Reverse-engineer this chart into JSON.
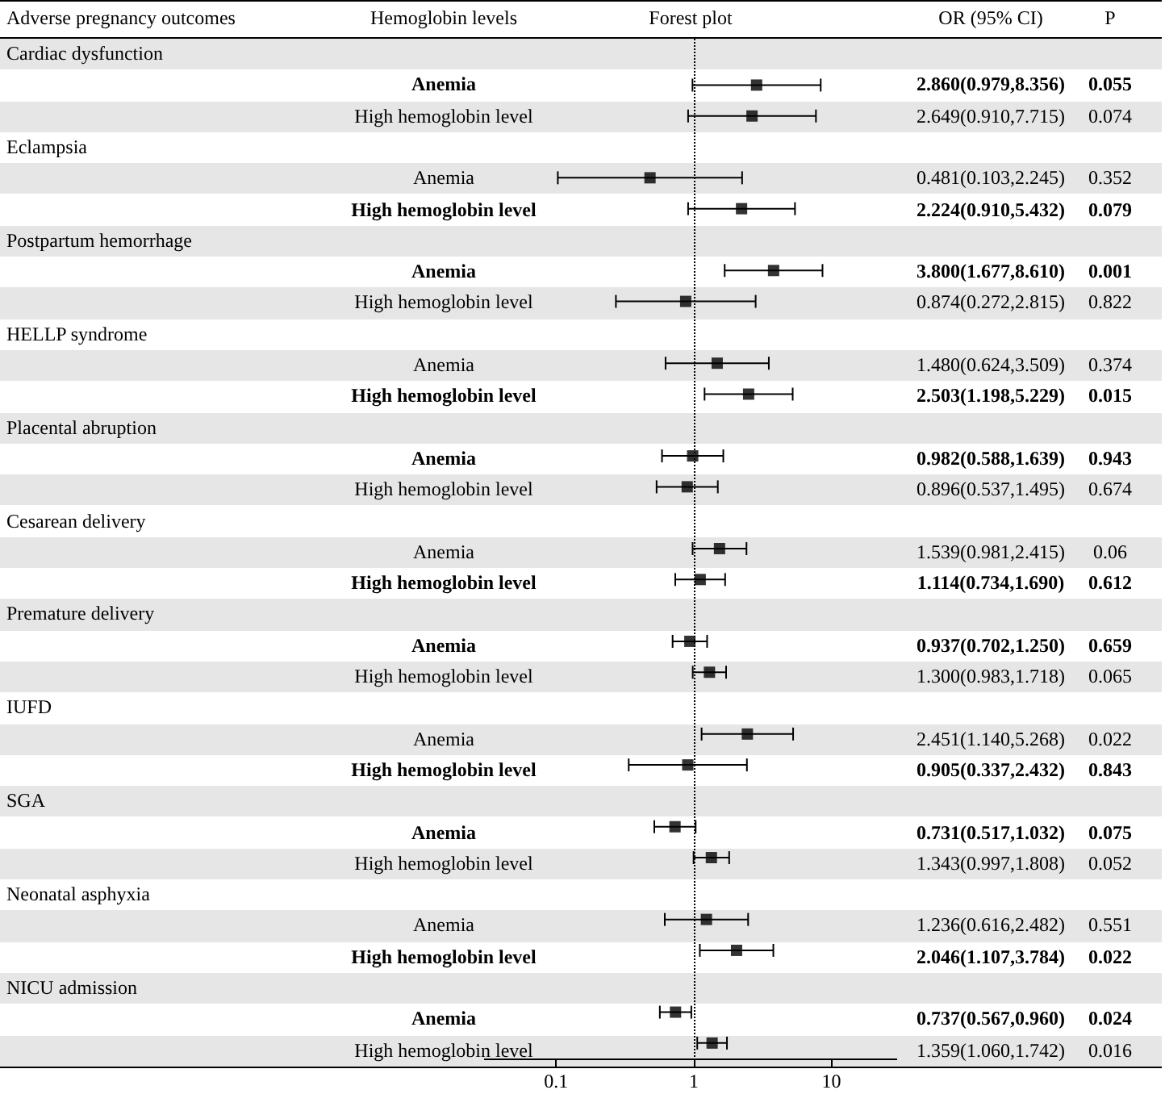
{
  "chart_data": {
    "type": "scatter",
    "orientation": "horizontal",
    "log": "x",
    "marker": "square",
    "color": "#000000",
    "annotations": [
      "Adverse pregnancy outcomes",
      "Hemoglobin levels",
      "Forest plot",
      "OR (95% CI)",
      "P",
      "Cardiac dysfunction",
      "Eclampsia",
      "Postpartum hemorrhage",
      "HELLP syndrome",
      "Placental abruption",
      "Cesarean delivery",
      "Premature delivery",
      "IUFD",
      "SGA",
      "Neonatal asphyxia",
      "NICU admission"
    ],
    "categories": [
      null,
      "Anemia",
      "High hemoglobin level",
      null,
      "Anemia",
      "High hemoglobin level",
      null,
      "Anemia",
      "High hemoglobin level",
      null,
      "Anemia",
      "High hemoglobin level",
      null,
      "Anemia",
      "High hemoglobin level",
      null,
      "Anemia",
      "High hemoglobin level",
      null,
      "Anemia",
      "High hemoglobin level",
      null,
      "Anemia",
      "High hemoglobin level",
      null,
      "Anemia",
      "High hemoglobin level",
      null,
      "Anemia",
      "High hemoglobin level",
      null,
      "Anemia",
      "High hemoglobin level"
    ],
    "values": [
      null,
      2.86,
      2.649,
      null,
      0.481,
      2.224,
      null,
      3.8,
      0.874,
      null,
      1.48,
      2.503,
      null,
      0.982,
      0.896,
      null,
      1.539,
      1.114,
      null,
      0.937,
      1.3,
      null,
      2.451,
      0.905,
      null,
      0.731,
      1.343,
      null,
      1.236,
      2.046,
      null,
      0.737,
      1.359
    ],
    "errors": [
      null,
      [
        0.979,
        8.356
      ],
      [
        0.91,
        7.715
      ],
      null,
      [
        0.103,
        2.245
      ],
      [
        0.91,
        5.432
      ],
      null,
      [
        1.677,
        8.61
      ],
      [
        0.272,
        2.815
      ],
      null,
      [
        0.624,
        3.509
      ],
      [
        1.198,
        5.229
      ],
      null,
      [
        0.588,
        1.639
      ],
      [
        0.537,
        1.495
      ],
      null,
      [
        0.981,
        2.415
      ],
      [
        0.734,
        1.69
      ],
      null,
      [
        0.702,
        1.25
      ],
      [
        0.983,
        1.718
      ],
      null,
      [
        1.14,
        5.268
      ],
      [
        0.337,
        2.432
      ],
      null,
      [
        0.517,
        1.032
      ],
      [
        0.997,
        1.808
      ],
      null,
      [
        0.616,
        2.482
      ],
      [
        1.107,
        3.784
      ],
      null,
      [
        0.567,
        0.96
      ],
      [
        1.06,
        1.742
      ]
    ],
    "value_labels": [
      null,
      "2.860(0.979,8.356)",
      "2.649(0.910,7.715)",
      null,
      "0.481(0.103,2.245)",
      "2.224(0.910,5.432)",
      null,
      "3.800(1.677,8.610)",
      "0.874(0.272,2.815)",
      null,
      "1.480(0.624,3.509)",
      "2.503(1.198,5.229)",
      null,
      "0.982(0.588,1.639)",
      "0.896(0.537,1.495)",
      null,
      "1.539(0.981,2.415)",
      "1.114(0.734,1.690)",
      null,
      "0.937(0.702,1.250)",
      "1.300(0.983,1.718)",
      null,
      "2.451(1.140,5.268)",
      "0.905(0.337,2.432)",
      null,
      "0.731(0.517,1.032)",
      "1.343(0.997,1.808)",
      null,
      "1.236(0.616,2.482)",
      "2.046(1.107,3.784)",
      null,
      "0.737(0.567,0.960)",
      "1.359(1.060,1.742)"
    ],
    "y2_categories": [
      null,
      "0.055",
      "0.074",
      null,
      "0.352",
      "0.079",
      null,
      "0.001",
      "0.822",
      null,
      "0.374",
      "0.015",
      null,
      "0.943",
      "0.674",
      null,
      "0.06",
      "0.612",
      null,
      "0.659",
      "0.065",
      null,
      "0.022",
      "0.843",
      null,
      "0.075",
      "0.052",
      null,
      "0.551",
      "0.022",
      null,
      "0.024",
      "0.016"
    ],
    "xlim": [
      0.03,
      30
    ],
    "xticks": [
      0.1,
      1,
      10
    ],
    "ref_lines": [
      {
        "axis": "x",
        "value": 1,
        "line_style": "dotted"
      }
    ]
  }
}
